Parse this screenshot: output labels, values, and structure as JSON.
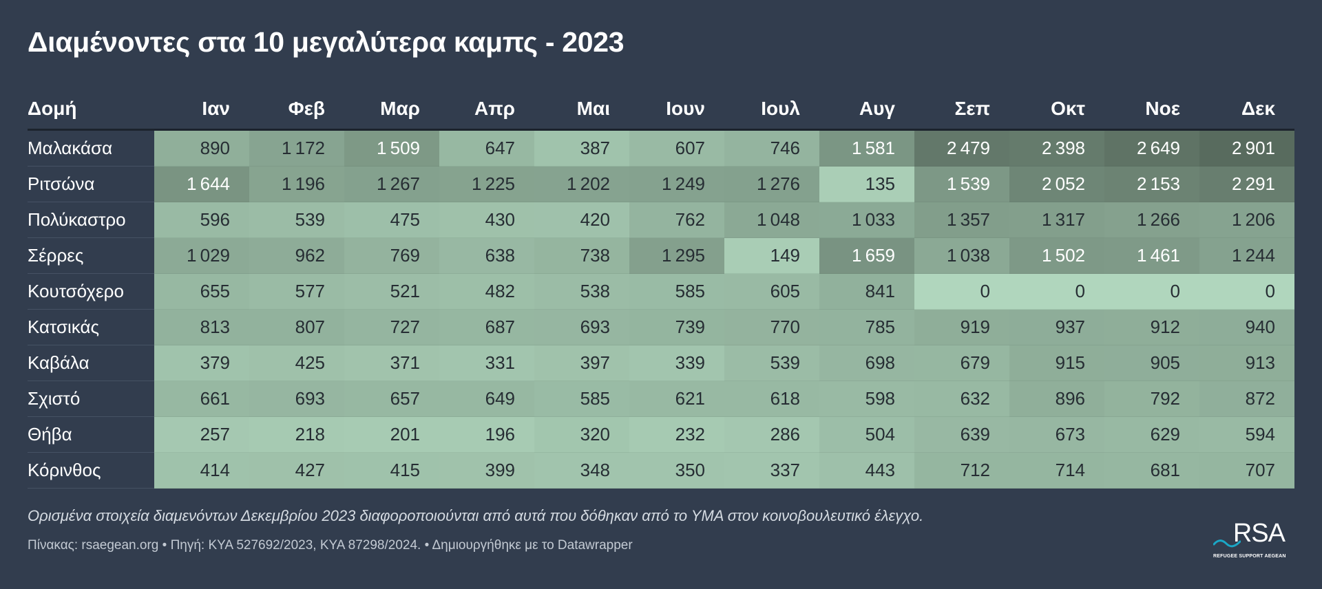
{
  "title": "Διαμένοντες στα 10 μεγαλύτερα καμπς - 2023",
  "note": "Ορισμένα στοιχεία διαμενόντων Δεκεμβρίου 2023 διαφοροποιούνται από αυτά που δόθηκαν από το ΥΜΑ στον κοινοβουλευτικό έλεγχο.",
  "source": "Πίνακας: rsaegean.org • Πηγή: ΚΥΑ 527692/2023, ΚΥΑ 87298/2024. • Δημιουργήθηκε με το Datawrapper",
  "logo": {
    "text": "RSA",
    "subtitle": "REFUGEE SUPPORT AEGEAN",
    "icon": "wave-icon"
  },
  "colors": {
    "background": "#323d4e",
    "scale_low": "#b0d6bd",
    "scale_high": "#586b5e"
  },
  "chart_data": {
    "type": "heatmap",
    "title": "Διαμένοντες στα 10 μεγαλύτερα καμπς - 2023",
    "row_header": "Δομή",
    "columns": [
      "Ιαν",
      "Φεβ",
      "Μαρ",
      "Απρ",
      "Μαι",
      "Ιουν",
      "Ιουλ",
      "Αυγ",
      "Σεπ",
      "Οκτ",
      "Νοε",
      "Δεκ"
    ],
    "rows": [
      {
        "name": "Μαλακάσα",
        "values": [
          890,
          1172,
          1509,
          647,
          387,
          607,
          746,
          1581,
          2479,
          2398,
          2649,
          2901
        ]
      },
      {
        "name": "Ριτσώνα",
        "values": [
          1644,
          1196,
          1267,
          1225,
          1202,
          1249,
          1276,
          135,
          1539,
          2052,
          2153,
          2291
        ]
      },
      {
        "name": "Πολύκαστρο",
        "values": [
          596,
          539,
          475,
          430,
          420,
          762,
          1048,
          1033,
          1357,
          1317,
          1266,
          1206
        ]
      },
      {
        "name": "Σέρρες",
        "values": [
          1029,
          962,
          769,
          638,
          738,
          1295,
          149,
          1659,
          1038,
          1502,
          1461,
          1244
        ]
      },
      {
        "name": "Κουτσόχερο",
        "values": [
          655,
          577,
          521,
          482,
          538,
          585,
          605,
          841,
          0,
          0,
          0,
          0
        ]
      },
      {
        "name": "Κατσικάς",
        "values": [
          813,
          807,
          727,
          687,
          693,
          739,
          770,
          785,
          919,
          937,
          912,
          940
        ]
      },
      {
        "name": "Καβάλα",
        "values": [
          379,
          425,
          371,
          331,
          397,
          339,
          539,
          698,
          679,
          915,
          905,
          913
        ]
      },
      {
        "name": "Σχιστό",
        "values": [
          661,
          693,
          657,
          649,
          585,
          621,
          618,
          598,
          632,
          896,
          792,
          872
        ]
      },
      {
        "name": "Θήβα",
        "values": [
          257,
          218,
          201,
          196,
          320,
          232,
          286,
          504,
          639,
          673,
          629,
          594
        ]
      },
      {
        "name": "Κόρινθος",
        "values": [
          414,
          427,
          415,
          399,
          348,
          350,
          337,
          443,
          712,
          714,
          681,
          707
        ]
      }
    ]
  }
}
